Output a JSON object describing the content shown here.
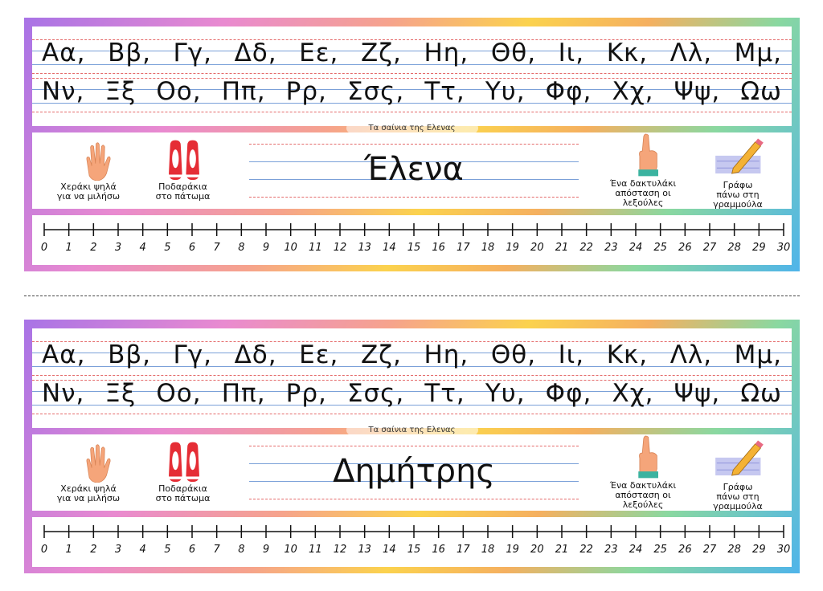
{
  "cards": [
    {
      "alphabet_rows": [
        [
          "Αα,",
          "Ββ,",
          "Γγ,",
          "Δδ,",
          "Εε,",
          "Ζζ,",
          "Ηη,",
          "Θθ,",
          "Ιι,",
          "Κκ,",
          "Λλ,",
          "Μμ,"
        ],
        [
          "Νν,",
          "Ξξ",
          "Οο,",
          "Ππ,",
          "Ρρ,",
          "Σσς,",
          "Ττ,",
          "Υυ,",
          "Φφ,",
          "Χχ,",
          "Ψψ,",
          "Ωω"
        ]
      ],
      "brand": "Τα σαίνια της Ελενας",
      "tips": [
        [
          "Χεράκι ψηλά",
          "για να μιλήσω"
        ],
        [
          "Ποδαράκια",
          "στο πάτωμα"
        ],
        [
          "Ένα δακτυλάκι",
          "απόσταση οι",
          "λεξούλες"
        ],
        [
          "Γράφω",
          "πάνω στη",
          "γραμμούλα"
        ]
      ],
      "name": "Έλενα",
      "number_line": [
        0,
        1,
        2,
        3,
        4,
        5,
        6,
        7,
        8,
        9,
        10,
        11,
        12,
        13,
        14,
        15,
        16,
        17,
        18,
        19,
        20,
        21,
        22,
        23,
        24,
        25,
        26,
        27,
        28,
        29,
        30
      ]
    },
    {
      "alphabet_rows": [
        [
          "Αα,",
          "Ββ,",
          "Γγ,",
          "Δδ,",
          "Εε,",
          "Ζζ,",
          "Ηη,",
          "Θθ,",
          "Ιι,",
          "Κκ,",
          "Λλ,",
          "Μμ,"
        ],
        [
          "Νν,",
          "Ξξ",
          "Οο,",
          "Ππ,",
          "Ρρ,",
          "Σσς,",
          "Ττ,",
          "Υυ,",
          "Φφ,",
          "Χχ,",
          "Ψψ,",
          "Ωω"
        ]
      ],
      "brand": "Τα σαίνια της Ελενας",
      "tips": [
        [
          "Χεράκι ψηλά",
          "για να μιλήσω"
        ],
        [
          "Ποδαράκια",
          "στο πάτωμα"
        ],
        [
          "Ένα δακτυλάκι",
          "απόσταση οι",
          "λεξούλες"
        ],
        [
          "Γράφω",
          "πάνω στη",
          "γραμμούλα"
        ]
      ],
      "name": "Δημήτρης",
      "number_line": [
        0,
        1,
        2,
        3,
        4,
        5,
        6,
        7,
        8,
        9,
        10,
        11,
        12,
        13,
        14,
        15,
        16,
        17,
        18,
        19,
        20,
        21,
        22,
        23,
        24,
        25,
        26,
        27,
        28,
        29,
        30
      ]
    }
  ]
}
